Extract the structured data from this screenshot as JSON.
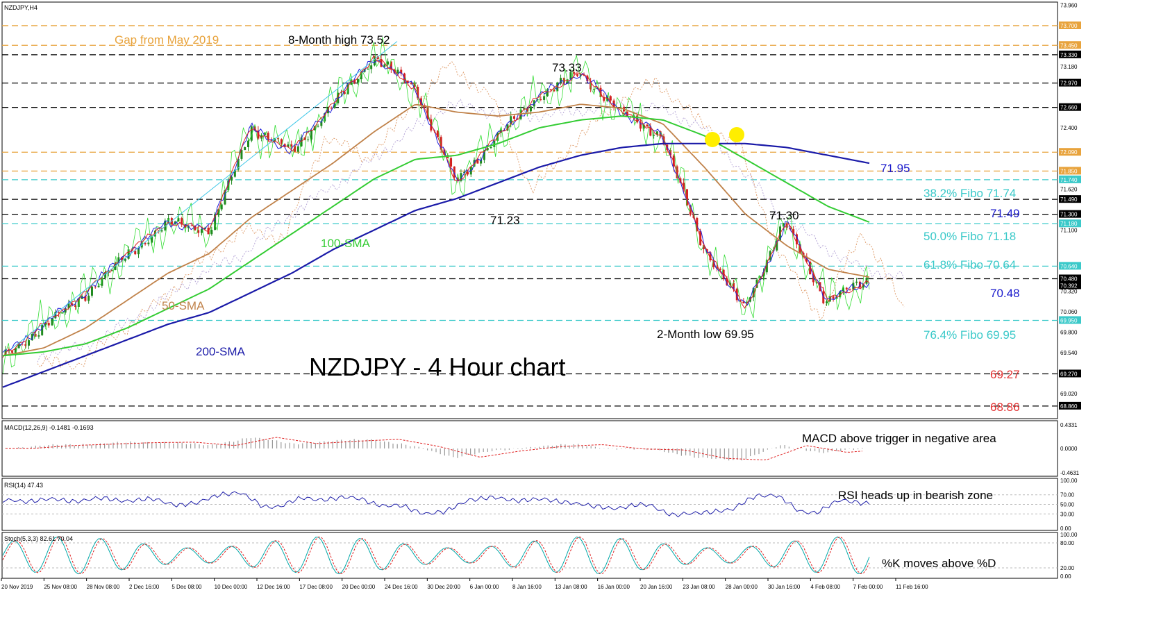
{
  "window": {
    "symbol_label": "NZDJPY,H4"
  },
  "main": {
    "title": "NZDJPY - 4 Hour chart",
    "price_axis": [
      "73.960",
      "73.700",
      "73.450",
      "73.330",
      "73.180",
      "72.970",
      "72.660",
      "72.400",
      "72.090",
      "71.850",
      "71.740",
      "71.620",
      "71.490",
      "71.300",
      "71.180",
      "71.100",
      "70.640",
      "70.480",
      "70.392",
      "70.320",
      "70.060",
      "69.950",
      "69.800",
      "69.540",
      "69.270",
      "69.020",
      "68.860"
    ],
    "price_axis_tags": [
      {
        "text": "73.700",
        "color": "#e8a33c"
      },
      {
        "text": "73.450",
        "color": "#e8a33c"
      },
      {
        "text": "73.330",
        "color": "#000000"
      },
      {
        "text": "72.970",
        "color": "#000000"
      },
      {
        "text": "72.660",
        "color": "#000000"
      },
      {
        "text": "72.090",
        "color": "#e8a33c"
      },
      {
        "text": "71.850",
        "color": "#e8a33c"
      },
      {
        "text": "71.740",
        "color": "#3ac9c9"
      },
      {
        "text": "71.490",
        "color": "#000000"
      },
      {
        "text": "71.300",
        "color": "#000000"
      },
      {
        "text": "71.180",
        "color": "#3ac9c9"
      },
      {
        "text": "70.640",
        "color": "#3ac9c9"
      },
      {
        "text": "70.480",
        "color": "#000000"
      },
      {
        "text": "70.392",
        "color": "#000000"
      },
      {
        "text": "69.950",
        "color": "#3ac9c9"
      },
      {
        "text": "69.270",
        "color": "#000000"
      },
      {
        "text": "68.860",
        "color": "#000000"
      }
    ],
    "labels": {
      "gap": "Gap from May 2019",
      "high": "8-Month high 73.52",
      "p7333": "73.33",
      "p7123": "71.23",
      "p7130": "71.30",
      "low": "2-Month low 69.95",
      "sma100": "100-SMA",
      "sma50": "50-SMA",
      "sma200": "200-SMA",
      "r7195": "71.95",
      "f382": "38.2% Fibo 71.74",
      "r7149": "71.49",
      "f500": "50.0% Fibo 71.18",
      "f618": "61.8% Fibo 70.64",
      "r7048": "70.48",
      "f764": "76.4% Fibo 69.95",
      "s6927": "69.27",
      "s6886": "68.86"
    }
  },
  "macd": {
    "header": "MACD(12,26,9) -0.1481 -0.1693",
    "axis": [
      "0.4331",
      "0.0000",
      "-0.4631"
    ],
    "note": "MACD above trigger in negative area"
  },
  "rsi": {
    "header": "RSI(14) 47.43",
    "axis": [
      "100.00",
      "70.00",
      "50.00",
      "30.00",
      "0.00"
    ],
    "note": "RSI heads up in bearish zone"
  },
  "stoch": {
    "header": "Stoch(5,3,3) 82.61 70.04",
    "axis": [
      "100.00",
      "80.00",
      "20.00",
      "0.00"
    ],
    "note": "%K moves above %D"
  },
  "x_axis": [
    "20 Nov 2019",
    "25 Nov 08:00",
    "28 Nov 08:00",
    "2 Dec 16:00",
    "5 Dec 08:00",
    "10 Dec 00:00",
    "12 Dec 16:00",
    "17 Dec 08:00",
    "20 Dec 00:00",
    "24 Dec 16:00",
    "30 Dec 20:00",
    "6 Jan 00:00",
    "8 Jan 16:00",
    "13 Jan 08:00",
    "16 Jan 00:00",
    "20 Jan 16:00",
    "23 Jan 08:00",
    "28 Jan 00:00",
    "30 Jan 16:00",
    "4 Feb 08:00",
    "7 Feb 00:00",
    "11 Feb 16:00"
  ],
  "colors": {
    "sma50": "#c0824a",
    "sma100": "#33cc33",
    "sma200": "#1a1aa8",
    "fibo": "#3ac9c9",
    "gap": "#e8a33c",
    "support": "#e23030",
    "resistance_blue": "#1a1acc",
    "candle_up": "#1f8a1f",
    "candle_down": "#d22020"
  },
  "chart_data": {
    "type": "line",
    "title": "NZDJPY - 4 Hour chart",
    "ylim": [
      68.7,
      74.0
    ],
    "series": [
      {
        "name": "NZDJPY,H4",
        "x": [
          "20 Nov 2019",
          "25 Nov 08:00",
          "28 Nov 08:00",
          "2 Dec 16:00",
          "5 Dec 08:00",
          "10 Dec 00:00",
          "12 Dec 16:00",
          "17 Dec 08:00",
          "20 Dec 00:00",
          "24 Dec 16:00",
          "30 Dec 20:00",
          "6 Jan 00:00",
          "8 Jan 16:00",
          "13 Jan 08:00",
          "16 Jan 00:00",
          "20 Jan 16:00",
          "23 Jan 08:00",
          "28 Jan 00:00",
          "30 Jan 16:00",
          "4 Feb 08:00",
          "7 Feb 00:00",
          "11 Feb 16:00"
        ],
        "values": [
          69.5,
          69.9,
          70.3,
          70.8,
          71.2,
          71.1,
          72.4,
          72.1,
          72.7,
          73.3,
          72.9,
          71.7,
          72.3,
          72.8,
          73.1,
          72.6,
          72.3,
          70.9,
          70.1,
          71.2,
          70.2,
          70.45
        ]
      },
      {
        "name": "50-SMA",
        "values": [
          69.5,
          69.6,
          69.85,
          70.2,
          70.55,
          70.8,
          71.25,
          71.6,
          71.95,
          72.35,
          72.7,
          72.6,
          72.55,
          72.6,
          72.7,
          72.65,
          72.45,
          71.9,
          71.3,
          70.9,
          70.6,
          70.5
        ]
      },
      {
        "name": "100-SMA",
        "values": [
          69.5,
          69.55,
          69.65,
          69.85,
          70.1,
          70.35,
          70.7,
          71.05,
          71.4,
          71.75,
          72.0,
          72.05,
          72.2,
          72.4,
          72.5,
          72.55,
          72.5,
          72.3,
          72.0,
          71.7,
          71.4,
          71.2
        ]
      },
      {
        "name": "200-SMA",
        "values": [
          69.1,
          69.3,
          69.5,
          69.7,
          69.9,
          70.05,
          70.3,
          70.55,
          70.85,
          71.1,
          71.35,
          71.5,
          71.7,
          71.9,
          72.05,
          72.15,
          72.2,
          72.2,
          72.2,
          72.15,
          72.05,
          71.95
        ]
      }
    ],
    "annotations": [
      "Gap from May 2019",
      "8-Month high 73.52",
      "73.33",
      "71.23",
      "71.30",
      "2-Month low 69.95"
    ],
    "horizontal_levels": [
      73.7,
      73.45,
      73.33,
      72.97,
      72.66,
      72.09,
      71.85,
      71.74,
      71.49,
      71.3,
      71.18,
      70.64,
      70.48,
      69.95,
      69.27,
      68.86
    ]
  }
}
